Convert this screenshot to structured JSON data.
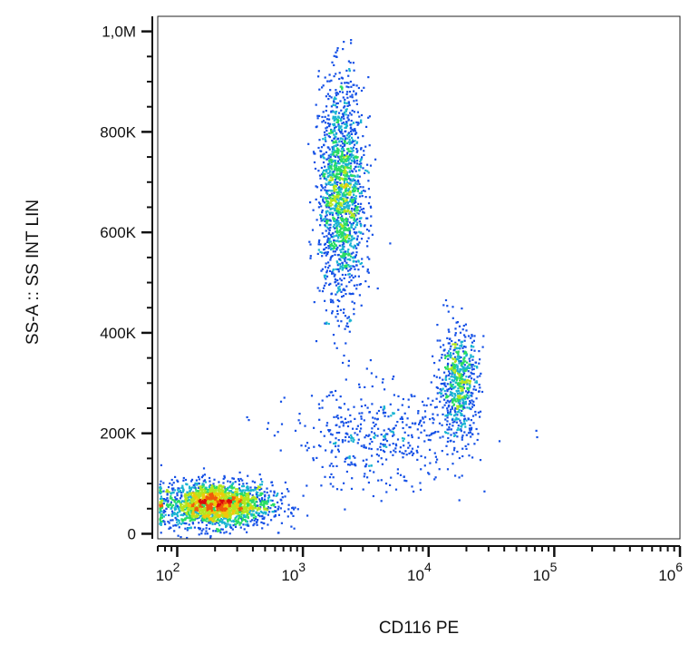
{
  "chart_data": {
    "type": "scatter",
    "subtype": "flow-cytometry-density-dot-plot",
    "xlabel": "CD116 PE",
    "ylabel": "SS-A :: SS INT LIN",
    "x_scale": "log",
    "y_scale": "linear",
    "xlim": [
      70,
      1000000
    ],
    "ylim": [
      -10000,
      1030000
    ],
    "x_ticks": [
      {
        "value": 100,
        "base": "10",
        "exp": "2"
      },
      {
        "value": 1000,
        "base": "10",
        "exp": "3"
      },
      {
        "value": 10000,
        "base": "10",
        "exp": "4"
      },
      {
        "value": 100000,
        "base": "10",
        "exp": "5"
      },
      {
        "value": 1000000,
        "base": "10",
        "exp": "6"
      }
    ],
    "y_ticks": [
      {
        "value": 0,
        "label": "0"
      },
      {
        "value": 200000,
        "label": "200K"
      },
      {
        "value": 400000,
        "label": "400K"
      },
      {
        "value": 600000,
        "label": "600K"
      },
      {
        "value": 800000,
        "label": "800K"
      },
      {
        "value": 1000000,
        "label": "1,0M"
      }
    ],
    "grid": false,
    "density_colormap": [
      "#0000c8",
      "#1450e6",
      "#19b4d2",
      "#28dc64",
      "#b4e61e",
      "#f0c80a",
      "#f05a0a",
      "#dc0a0a"
    ],
    "populations": [
      {
        "x_center": 200,
        "x_log_sd": 0.22,
        "y_center": 60000,
        "y_sd": 22000,
        "count": 2200
      },
      {
        "x_center": 2000,
        "x_log_sd": 0.09,
        "y_center": 680000,
        "y_sd": 110000,
        "count": 1700
      },
      {
        "x_center": 17000,
        "x_log_sd": 0.08,
        "y_center": 300000,
        "y_sd": 55000,
        "count": 650
      },
      {
        "x_center": 4000,
        "x_log_sd": 0.35,
        "y_center": 190000,
        "y_sd": 50000,
        "count": 450
      }
    ]
  }
}
